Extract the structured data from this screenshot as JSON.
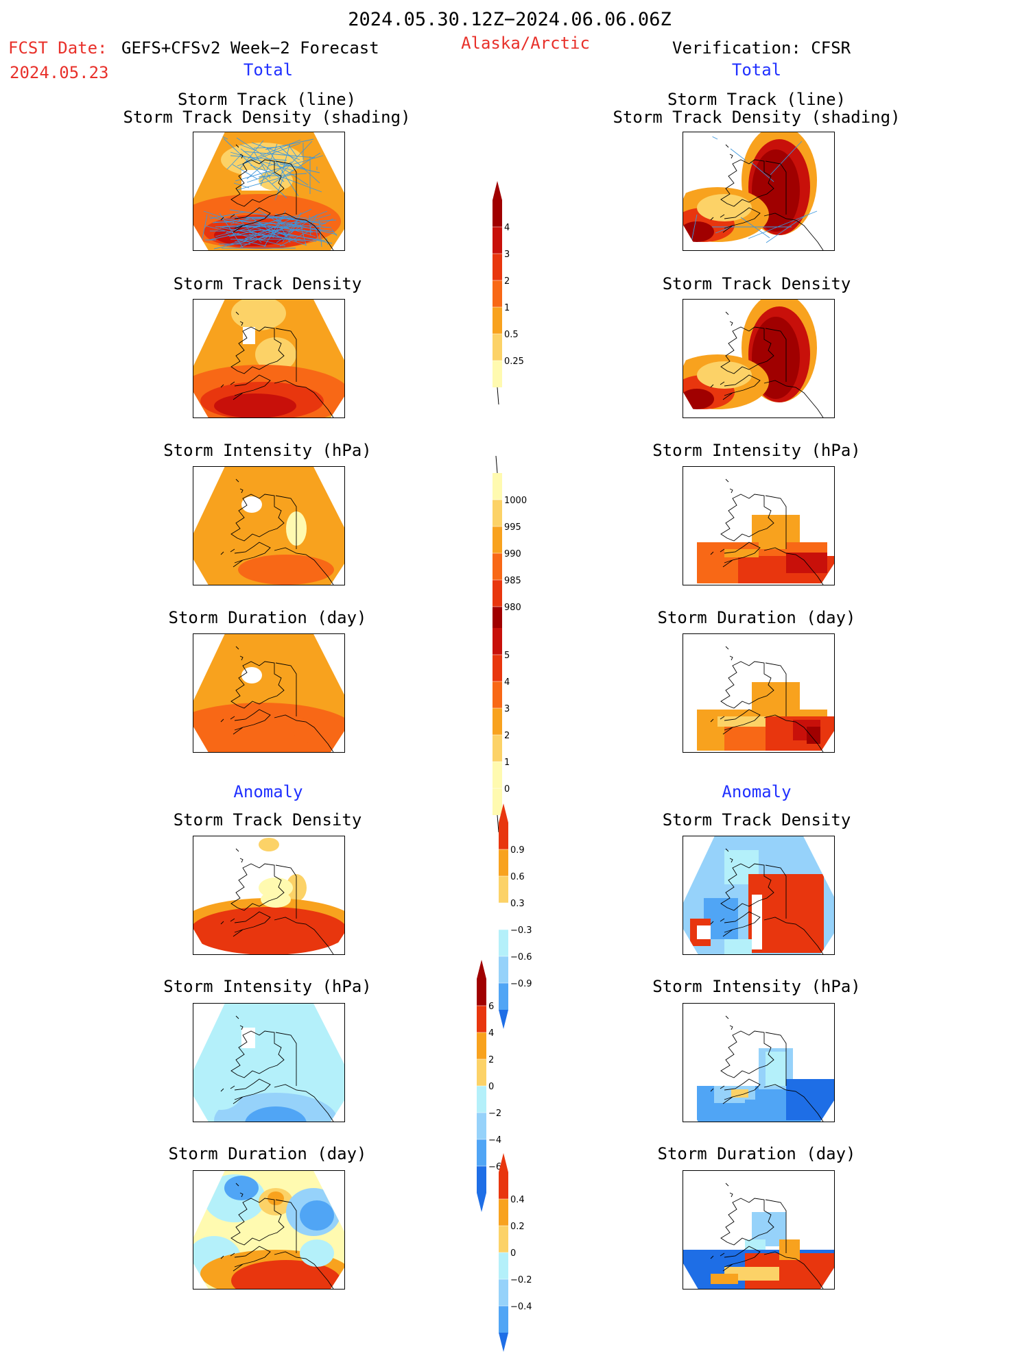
{
  "header": {
    "period": "2024.05.30.12Z−2024.06.06.06Z",
    "fcst_label": "FCST Date:",
    "fcst_model": "GEFS+CFSv2 Week−2 Forecast",
    "fcst_date": "2024.05.23",
    "region": "Alaska/Arctic",
    "verification": "Verification: CFSR"
  },
  "sections": {
    "total": "Total",
    "anomaly": "Anomaly"
  },
  "titles": {
    "track_line": "Storm Track (line)",
    "track_density_shading": "Storm Track Density (shading)",
    "track_density": "Storm Track Density",
    "intensity": "Storm Intensity (hPa)",
    "duration": "Storm Duration (day)"
  },
  "colorbars": {
    "density_total": [
      "4",
      "3",
      "2",
      "1",
      "0.5",
      "0.25"
    ],
    "intensity_total": [
      "1000",
      "995",
      "990",
      "985",
      "980"
    ],
    "duration_total": [
      "5",
      "4",
      "3",
      "2",
      "1",
      "0"
    ],
    "density_anomaly": [
      "0.9",
      "0.6",
      "0.3",
      "−0.3",
      "−0.6",
      "−0.9"
    ],
    "intensity_anomaly": [
      "6",
      "4",
      "2",
      "0",
      "−2",
      "−4",
      "−6"
    ],
    "duration_anomaly": [
      "0.4",
      "0.2",
      "0",
      "−0.2",
      "−0.4"
    ]
  },
  "colors": {
    "warm": [
      "#fffab0",
      "#fcd267",
      "#f8a21e",
      "#f86816",
      "#e8360e",
      "#c8100a",
      "#a00000"
    ],
    "cool": [
      "#ffffff",
      "#b4f0fa",
      "#96d2fa",
      "#50a5f5",
      "#1e6ee6",
      "#0a50c8"
    ],
    "track_line": "#3c96dc",
    "header_red": "#e8302a",
    "header_blue": "#2030ff"
  }
}
